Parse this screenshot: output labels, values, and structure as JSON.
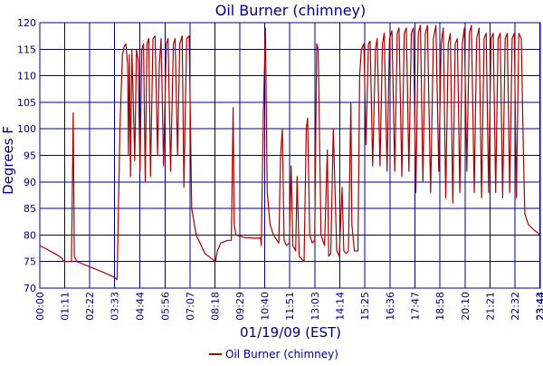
{
  "chart_data": {
    "type": "line",
    "title": "Oil Burner (chimney)",
    "xlabel": "01/19/09 (EST)",
    "ylabel": "Degrees F",
    "ylim": [
      70,
      120
    ],
    "yticks": [
      70,
      75,
      80,
      85,
      90,
      95,
      100,
      105,
      110,
      115,
      120
    ],
    "xlim": [
      "00:00",
      "23:44"
    ],
    "xticks": [
      "00:00",
      "01:11",
      "02:22",
      "03:33",
      "04:44",
      "05:56",
      "07:07",
      "08:18",
      "09:29",
      "10:40",
      "11:51",
      "13:03",
      "14:14",
      "15:25",
      "16:36",
      "17:47",
      "18:58",
      "20:10",
      "21:21",
      "22:32",
      "23:43",
      "23:44"
    ],
    "grid": true,
    "legend_position": "bottom-center",
    "colors": {
      "series": "#aa0000",
      "grid": "#000080",
      "text": "#000080",
      "axis": "#000080"
    },
    "series": [
      {
        "name": "Oil Burner (chimney)",
        "points": [
          [
            "00:00",
            78.0
          ],
          [
            "00:20",
            77.3
          ],
          [
            "00:40",
            76.6
          ],
          [
            "01:00",
            75.8
          ],
          [
            "01:10",
            75.0
          ],
          [
            "01:30",
            75.0
          ],
          [
            "01:35",
            103.0
          ],
          [
            "01:38",
            76.0
          ],
          [
            "01:45",
            75.0
          ],
          [
            "02:00",
            74.6
          ],
          [
            "02:30",
            73.8
          ],
          [
            "03:00",
            73.0
          ],
          [
            "03:33",
            72.0
          ],
          [
            "03:40",
            71.6
          ],
          [
            "03:48",
            100.0
          ],
          [
            "03:55",
            114.0
          ],
          [
            "04:00",
            115.5
          ],
          [
            "04:05",
            116.0
          ],
          [
            "04:10",
            112.0
          ],
          [
            "04:12",
            95.0
          ],
          [
            "04:15",
            114.0
          ],
          [
            "04:18",
            91.0
          ],
          [
            "04:22",
            115.0
          ],
          [
            "04:30",
            94.0
          ],
          [
            "04:35",
            115.0
          ],
          [
            "04:40",
            113.0
          ],
          [
            "04:45",
            92.0
          ],
          [
            "04:50",
            115.0
          ],
          [
            "04:55",
            116.0
          ],
          [
            "05:00",
            90.0
          ],
          [
            "05:05",
            116.0
          ],
          [
            "05:10",
            117.0
          ],
          [
            "05:15",
            91.0
          ],
          [
            "05:22",
            117.0
          ],
          [
            "05:28",
            117.5
          ],
          [
            "05:35",
            95.0
          ],
          [
            "05:40",
            112.0
          ],
          [
            "05:45",
            117.0
          ],
          [
            "05:52",
            93.0
          ],
          [
            "06:00",
            116.0
          ],
          [
            "06:05",
            117.0
          ],
          [
            "06:12",
            92.0
          ],
          [
            "06:20",
            116.0
          ],
          [
            "06:25",
            117.0
          ],
          [
            "06:32",
            95.0
          ],
          [
            "06:38",
            116.0
          ],
          [
            "06:45",
            117.5
          ],
          [
            "06:50",
            89.0
          ],
          [
            "06:58",
            117.0
          ],
          [
            "07:05",
            117.5
          ],
          [
            "07:12",
            85.0
          ],
          [
            "07:25",
            80.0
          ],
          [
            "07:50",
            76.5
          ],
          [
            "08:10",
            75.5
          ],
          [
            "08:20",
            75.0
          ],
          [
            "08:25",
            77.0
          ],
          [
            "08:35",
            78.5
          ],
          [
            "08:55",
            79.0
          ],
          [
            "09:05",
            79.0
          ],
          [
            "09:10",
            104.0
          ],
          [
            "09:13",
            82.0
          ],
          [
            "09:18",
            80.0
          ],
          [
            "09:45",
            79.5
          ],
          [
            "10:20",
            79.4
          ],
          [
            "10:28",
            79.5
          ],
          [
            "10:30",
            78.0
          ],
          [
            "10:36",
            103.0
          ],
          [
            "10:42",
            119.0
          ],
          [
            "10:47",
            88.0
          ],
          [
            "10:55",
            82.0
          ],
          [
            "11:05",
            80.0
          ],
          [
            "11:15",
            79.0
          ],
          [
            "11:20",
            78.5
          ],
          [
            "11:25",
            95.0
          ],
          [
            "11:30",
            100.0
          ],
          [
            "11:35",
            79.0
          ],
          [
            "11:42",
            78.0
          ],
          [
            "11:50",
            78.5
          ],
          [
            "11:55",
            93.0
          ],
          [
            "12:00",
            78.0
          ],
          [
            "12:08",
            77.0
          ],
          [
            "12:12",
            91.0
          ],
          [
            "12:18",
            76.0
          ],
          [
            "12:25",
            75.5
          ],
          [
            "12:32",
            75.0
          ],
          [
            "12:38",
            100.0
          ],
          [
            "12:42",
            102.0
          ],
          [
            "12:48",
            80.0
          ],
          [
            "12:55",
            78.5
          ],
          [
            "13:02",
            79.0
          ],
          [
            "13:08",
            116.0
          ],
          [
            "13:12",
            115.0
          ],
          [
            "13:20",
            80.0
          ],
          [
            "13:30",
            78.0
          ],
          [
            "13:38",
            96.0
          ],
          [
            "13:42",
            76.0
          ],
          [
            "13:48",
            76.5
          ],
          [
            "13:55",
            100.0
          ],
          [
            "14:05",
            77.0
          ],
          [
            "14:12",
            76.0
          ],
          [
            "14:20",
            89.0
          ],
          [
            "14:25",
            77.0
          ],
          [
            "14:32",
            76.5
          ],
          [
            "14:38",
            77.0
          ],
          [
            "14:45",
            105.0
          ],
          [
            "14:48",
            82.0
          ],
          [
            "14:55",
            77.0
          ],
          [
            "15:05",
            77.0
          ],
          [
            "15:10",
            110.0
          ],
          [
            "15:15",
            115.0
          ],
          [
            "15:22",
            116.0
          ],
          [
            "15:28",
            97.0
          ],
          [
            "15:35",
            116.0
          ],
          [
            "15:40",
            116.5
          ],
          [
            "15:47",
            93.0
          ],
          [
            "15:55",
            115.0
          ],
          [
            "16:00",
            117.0
          ],
          [
            "16:08",
            93.0
          ],
          [
            "16:15",
            116.0
          ],
          [
            "16:20",
            118.0
          ],
          [
            "16:28",
            92.0
          ],
          [
            "16:35",
            117.0
          ],
          [
            "16:42",
            118.5
          ],
          [
            "16:50",
            92.0
          ],
          [
            "16:57",
            118.0
          ],
          [
            "17:02",
            119.0
          ],
          [
            "17:10",
            91.0
          ],
          [
            "17:17",
            118.0
          ],
          [
            "17:23",
            119.0
          ],
          [
            "17:30",
            92.0
          ],
          [
            "17:37",
            118.0
          ],
          [
            "17:43",
            119.0
          ],
          [
            "17:50",
            88.0
          ],
          [
            "17:57",
            118.0
          ],
          [
            "18:03",
            119.5
          ],
          [
            "18:10",
            90.0
          ],
          [
            "18:17",
            118.0
          ],
          [
            "18:23",
            119.5
          ],
          [
            "18:32",
            88.0
          ],
          [
            "18:40",
            117.0
          ],
          [
            "18:47",
            119.5
          ],
          [
            "18:55",
            92.0
          ],
          [
            "19:02",
            116.0
          ],
          [
            "19:08",
            119.0
          ],
          [
            "19:15",
            87.0
          ],
          [
            "19:22",
            116.0
          ],
          [
            "19:28",
            118.0
          ],
          [
            "19:35",
            86.0
          ],
          [
            "19:42",
            116.0
          ],
          [
            "19:48",
            117.0
          ],
          [
            "19:55",
            88.0
          ],
          [
            "20:02",
            116.0
          ],
          [
            "20:08",
            119.0
          ],
          [
            "20:15",
            92.0
          ],
          [
            "20:22",
            118.0
          ],
          [
            "20:28",
            119.5
          ],
          [
            "20:36",
            88.0
          ],
          [
            "20:43",
            117.0
          ],
          [
            "20:50",
            119.0
          ],
          [
            "20:57",
            87.0
          ],
          [
            "21:04",
            117.0
          ],
          [
            "21:10",
            118.0
          ],
          [
            "21:17",
            88.0
          ],
          [
            "21:24",
            117.0
          ],
          [
            "21:30",
            118.0
          ],
          [
            "21:37",
            88.0
          ],
          [
            "21:44",
            117.0
          ],
          [
            "21:50",
            118.0
          ],
          [
            "21:57",
            87.0
          ],
          [
            "22:04",
            117.0
          ],
          [
            "22:10",
            118.0
          ],
          [
            "22:17",
            88.0
          ],
          [
            "22:24",
            117.0
          ],
          [
            "22:30",
            118.0
          ],
          [
            "22:36",
            87.0
          ],
          [
            "22:43",
            118.0
          ],
          [
            "22:50",
            117.0
          ],
          [
            "22:56",
            95.0
          ],
          [
            "23:00",
            84.0
          ],
          [
            "23:10",
            82.0
          ],
          [
            "23:25",
            81.0
          ],
          [
            "23:35",
            80.5
          ],
          [
            "23:44",
            80.0
          ]
        ]
      }
    ]
  }
}
